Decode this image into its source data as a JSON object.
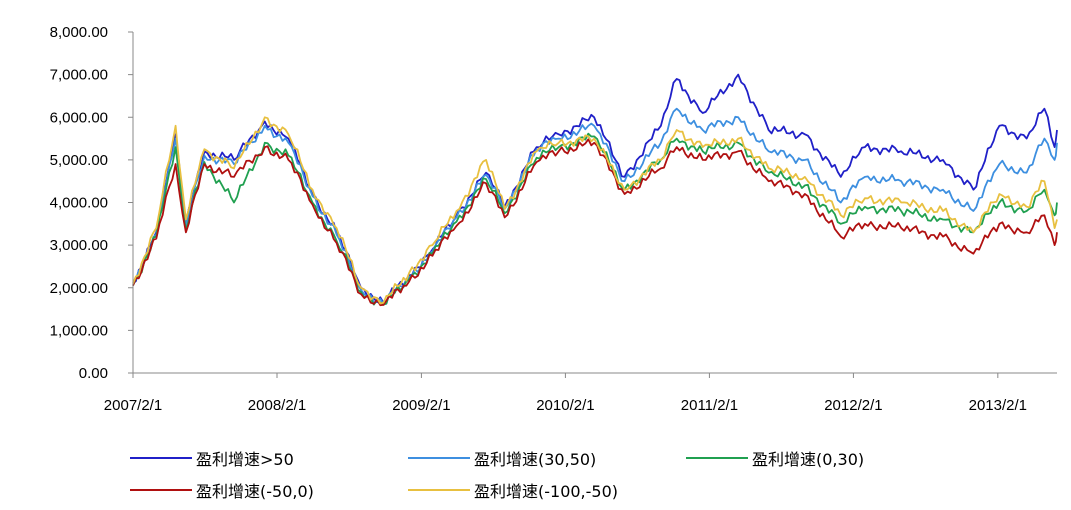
{
  "chart_data": {
    "type": "line",
    "title": "",
    "xlabel": "",
    "ylabel": "",
    "ylim": [
      0,
      8000
    ],
    "yticks": [
      "0.00",
      "1,000.00",
      "2,000.00",
      "3,000.00",
      "4,000.00",
      "5,000.00",
      "6,000.00",
      "7,000.00",
      "8,000.00"
    ],
    "yticks_values": [
      0,
      1000,
      2000,
      3000,
      4000,
      5000,
      6000,
      7000,
      8000
    ],
    "xlim": [
      "2007-02-01",
      "2013-07-01"
    ],
    "xticks": [
      "2007/2/1",
      "2008/2/1",
      "2009/2/1",
      "2010/2/1",
      "2011/2/1",
      "2012/2/1",
      "2013/2/1"
    ],
    "xticks_dates": [
      "2007-02-01",
      "2008-02-01",
      "2009-02-01",
      "2010-02-01",
      "2011-02-01",
      "2012-02-01",
      "2013-02-01"
    ],
    "grid": false,
    "legend_position": "bottom",
    "x": [
      "2007-02-01",
      "2007-04-01",
      "2007-05-20",
      "2007-06-15",
      "2007-08-01",
      "2007-10-15",
      "2008-01-01",
      "2008-03-01",
      "2008-05-01",
      "2008-07-01",
      "2008-09-01",
      "2008-10-28",
      "2009-01-01",
      "2009-03-01",
      "2009-05-01",
      "2009-07-15",
      "2009-08-31",
      "2009-11-20",
      "2010-01-15",
      "2010-04-15",
      "2010-07-01",
      "2010-10-01",
      "2010-11-10",
      "2011-01-15",
      "2011-04-15",
      "2011-07-01",
      "2011-10-01",
      "2011-12-31",
      "2012-03-01",
      "2012-06-01",
      "2012-09-15",
      "2012-12-01",
      "2013-02-05",
      "2013-04-15",
      "2013-05-30",
      "2013-06-25",
      "2013-07-01"
    ],
    "series": [
      {
        "name": "盈利增速>50",
        "color": "#2020c8",
        "values": [
          2100,
          3300,
          5600,
          3500,
          5200,
          5000,
          5900,
          5500,
          4200,
          3300,
          2000,
          1650,
          2300,
          2900,
          3700,
          4700,
          3900,
          5300,
          5600,
          6000,
          4600,
          5800,
          6900,
          6100,
          7000,
          5700,
          5600,
          4600,
          5300,
          5200,
          5000,
          4300,
          5800,
          5500,
          6200,
          5300,
          5700
        ]
      },
      {
        "name": "盈利增速(30,50)",
        "color": "#3d8fe0",
        "values": [
          2100,
          3250,
          5500,
          3450,
          5100,
          4900,
          5800,
          5400,
          4150,
          3250,
          1950,
          1620,
          2250,
          2850,
          3650,
          4650,
          3850,
          5250,
          5500,
          5800,
          4500,
          5400,
          6200,
          5700,
          6000,
          5200,
          5000,
          4000,
          4600,
          4500,
          4300,
          3800,
          4900,
          4700,
          5500,
          5000,
          5400
        ]
      },
      {
        "name": "盈利增速(0,30)",
        "color": "#20a050",
        "values": [
          2050,
          3200,
          5300,
          3350,
          4950,
          4000,
          5400,
          5100,
          4000,
          3100,
          1900,
          1600,
          2200,
          2800,
          3550,
          4550,
          3750,
          5050,
          5300,
          5550,
          4300,
          5000,
          5500,
          5200,
          5400,
          4700,
          4400,
          3500,
          3900,
          3800,
          3600,
          3300,
          4000,
          3800,
          4300,
          3700,
          4000
        ]
      },
      {
        "name": "盈利增速(-50,0)",
        "color": "#b01010",
        "values": [
          2050,
          3150,
          4900,
          3300,
          4900,
          4600,
          5300,
          5000,
          3950,
          3050,
          1850,
          1600,
          2150,
          2750,
          3450,
          4450,
          3650,
          4950,
          5200,
          5400,
          4200,
          4800,
          5300,
          5000,
          5200,
          4500,
          4200,
          3200,
          3500,
          3400,
          3200,
          2800,
          3500,
          3300,
          3700,
          3000,
          3300
        ]
      },
      {
        "name": "盈利增速(-100,-50)",
        "color": "#e8c040",
        "values": [
          2100,
          3400,
          5800,
          3600,
          5250,
          4800,
          6000,
          5600,
          4300,
          3400,
          2000,
          1650,
          2350,
          3000,
          3800,
          5000,
          3850,
          5200,
          5400,
          5500,
          4300,
          5000,
          5700,
          5300,
          5500,
          4800,
          4600,
          3700,
          4100,
          4000,
          3800,
          3300,
          4200,
          3900,
          4500,
          3400,
          3600
        ]
      }
    ]
  }
}
